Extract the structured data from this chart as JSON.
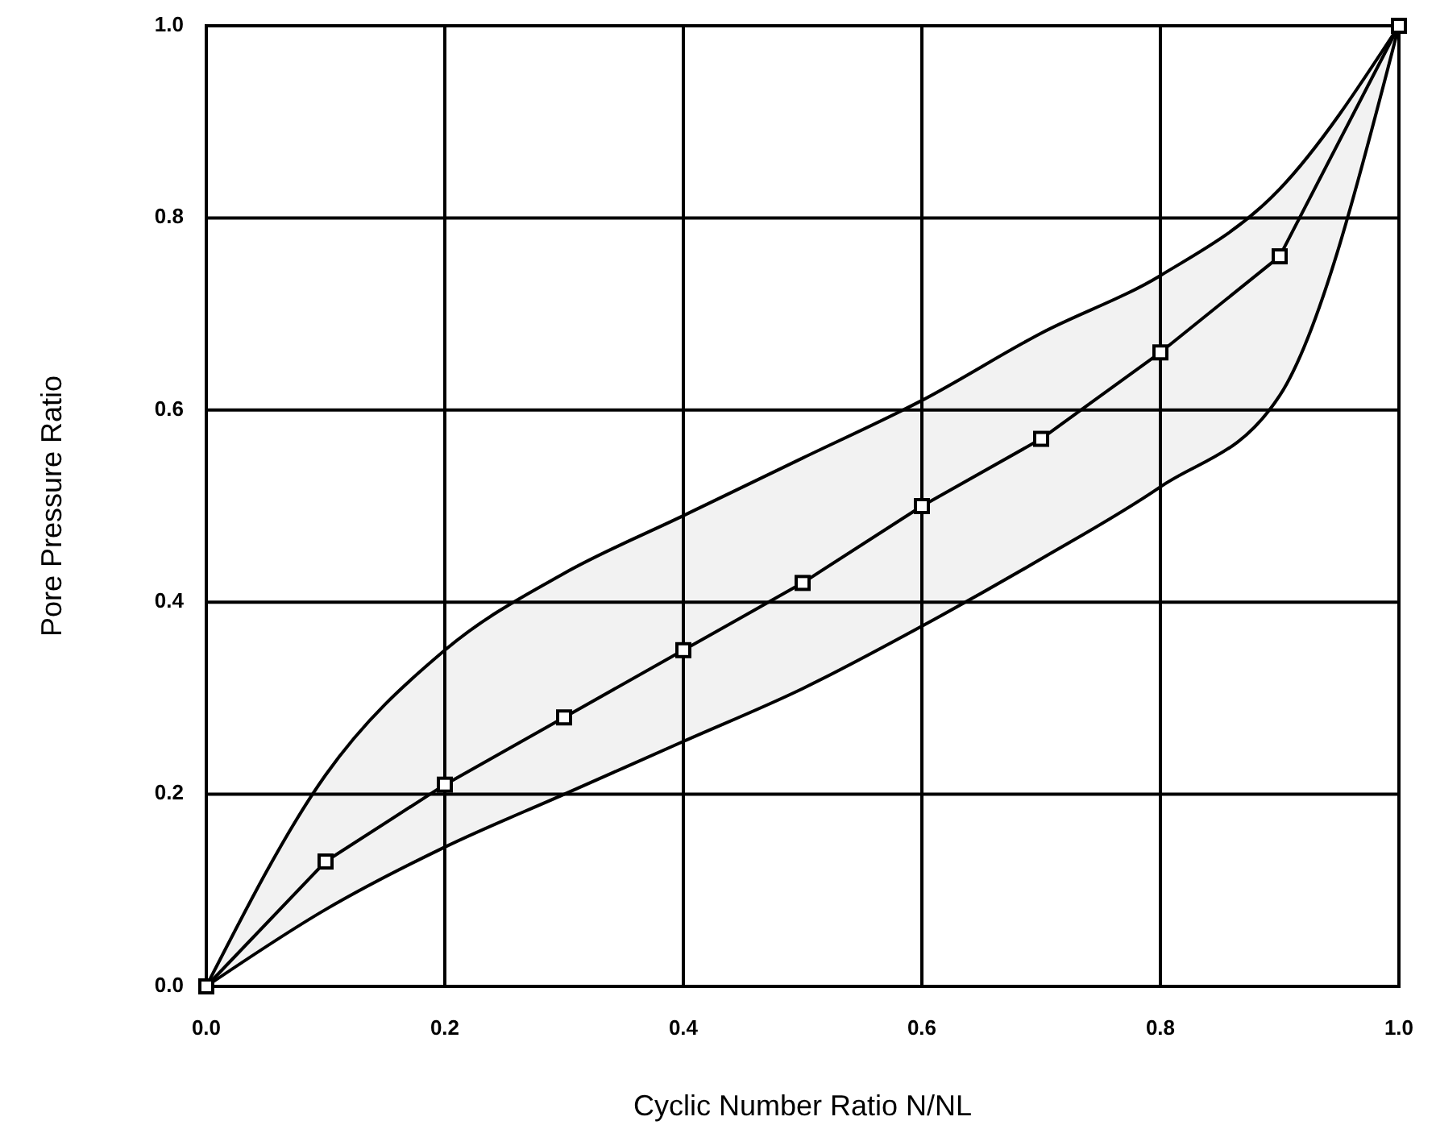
{
  "chart_data": {
    "type": "line",
    "xlabel": "Cyclic Number Ratio N/NL",
    "ylabel": "Pore Pressure Ratio",
    "xlim": [
      0,
      1
    ],
    "ylim": [
      0,
      1
    ],
    "xticks": [
      {
        "value": 0,
        "label": "0.0"
      },
      {
        "value": 0.2,
        "label": "0.2"
      },
      {
        "value": 0.4,
        "label": "0.4"
      },
      {
        "value": 0.6,
        "label": "0.6"
      },
      {
        "value": 0.8,
        "label": "0.8"
      },
      {
        "value": 1,
        "label": "1.0"
      }
    ],
    "yticks": [
      {
        "value": 0,
        "label": "0.0"
      },
      {
        "value": 0.2,
        "label": "0.2"
      },
      {
        "value": 0.4,
        "label": "0.4"
      },
      {
        "value": 0.6,
        "label": "0.6"
      },
      {
        "value": 0.8,
        "label": "0.8"
      },
      {
        "value": 1,
        "label": "1.0"
      }
    ],
    "grid": true,
    "line_style": "solid",
    "marker": "square",
    "series": [
      {
        "color": "#000000",
        "x": [
          0,
          0.1,
          0.2,
          0.3,
          0.4,
          0.5,
          0.6,
          0.7,
          0.8,
          0.9,
          1
        ],
        "values": [
          0,
          0.13,
          0.21,
          0.28,
          0.35,
          0.42,
          0.5,
          0.57,
          0.66,
          0.76,
          1
        ],
        "upper": [
          0,
          0.22,
          0.35,
          0.43,
          0.49,
          0.55,
          0.61,
          0.68,
          0.74,
          0.83,
          1
        ],
        "lower": [
          0,
          0.08,
          0.145,
          0.2,
          0.255,
          0.31,
          0.375,
          0.445,
          0.52,
          0.615,
          1
        ]
      }
    ]
  }
}
